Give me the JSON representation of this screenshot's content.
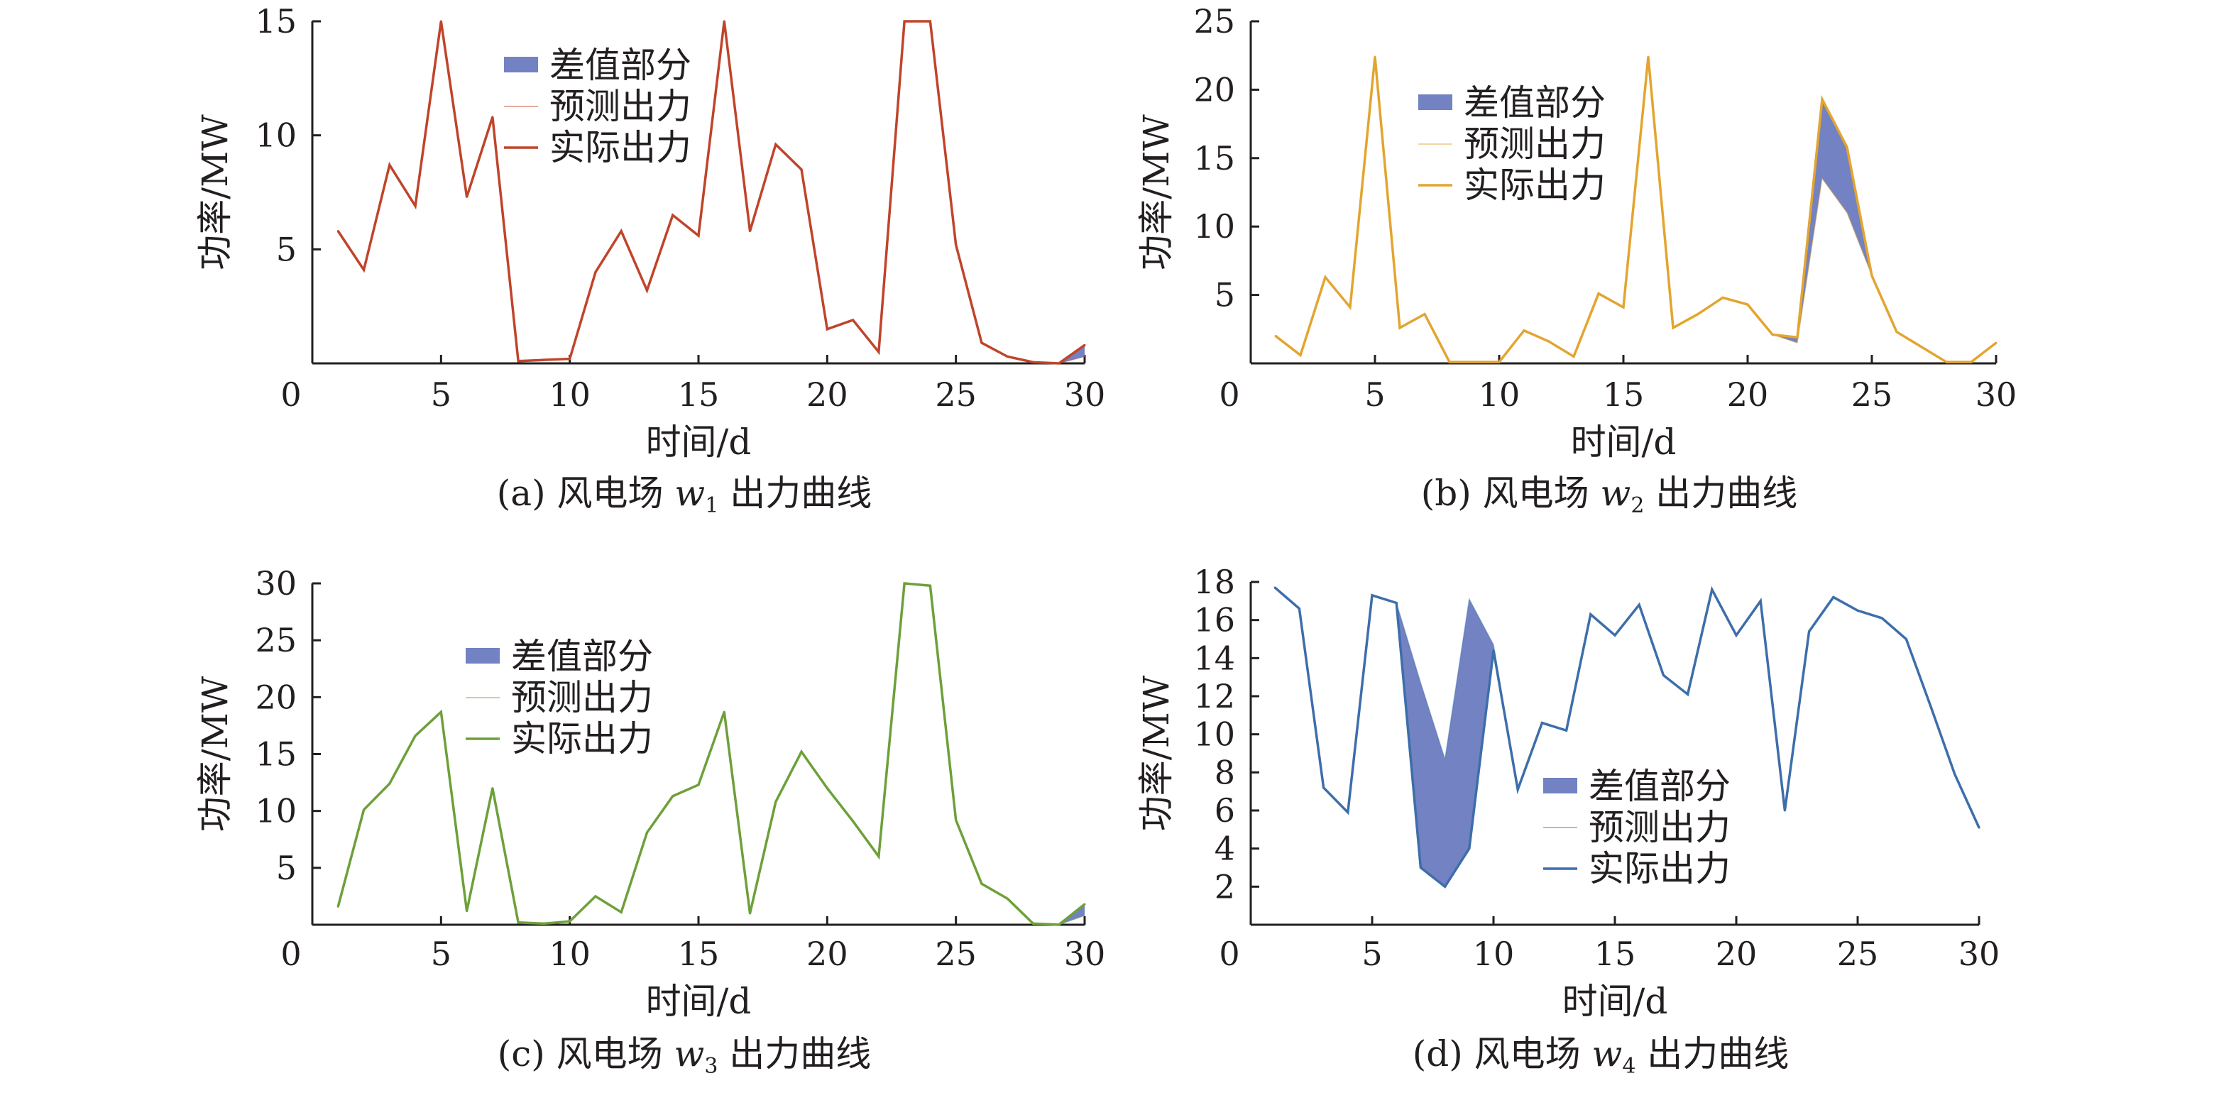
{
  "figure": {
    "colors": {
      "axis": "#231f20",
      "diff_fill": "#7382c2",
      "w1": "#c0442a",
      "w2": "#e3a530",
      "w3": "#6da03a",
      "w4": "#3d6eaa"
    }
  },
  "chart_data": [
    {
      "type": "line",
      "caption_prefix": "(a) 风电场 ",
      "caption_var": "w",
      "caption_sub": "1",
      "caption_suffix": " 出力曲线",
      "xlabel": "时间/d",
      "ylabel": "功率/MW",
      "xlim": [
        0,
        30
      ],
      "ylim": [
        0,
        15
      ],
      "xticks": [
        0,
        5,
        10,
        15,
        20,
        25,
        30
      ],
      "yticks": [
        5,
        10,
        15
      ],
      "legend_position": "top-center",
      "legend": [
        "差值部分",
        "预测出力",
        "实际出力"
      ],
      "line_color": "#c0442a",
      "x": [
        1,
        2,
        3,
        4,
        5,
        6,
        7,
        8,
        9,
        10,
        11,
        12,
        13,
        14,
        15,
        16,
        17,
        18,
        19,
        20,
        21,
        22,
        23,
        24,
        25,
        26,
        27,
        28,
        29,
        30
      ],
      "series": [
        {
          "name": "预测出力",
          "values": [
            5.8,
            4.1,
            8.7,
            6.9,
            15.0,
            7.3,
            10.8,
            0.1,
            0.15,
            0.2,
            4.0,
            5.8,
            3.2,
            6.5,
            5.6,
            15.0,
            5.8,
            9.6,
            8.5,
            1.5,
            1.9,
            0.5,
            15.0,
            15.0,
            5.2,
            0.9,
            0.3,
            0.05,
            0.0,
            0.3
          ]
        },
        {
          "name": "实际出力",
          "values": [
            5.8,
            4.1,
            8.7,
            6.9,
            15.0,
            7.3,
            10.8,
            0.1,
            0.15,
            0.2,
            4.0,
            5.8,
            3.2,
            6.5,
            5.6,
            15.0,
            5.8,
            9.6,
            8.5,
            1.5,
            1.9,
            0.5,
            15.0,
            15.0,
            5.2,
            0.9,
            0.3,
            0.05,
            0.0,
            0.8
          ]
        }
      ]
    },
    {
      "type": "line",
      "caption_prefix": "(b) 风电场 ",
      "caption_var": "w",
      "caption_sub": "2",
      "caption_suffix": " 出力曲线",
      "xlabel": "时间/d",
      "ylabel": "功率/MW",
      "xlim": [
        0,
        30
      ],
      "ylim": [
        0,
        25
      ],
      "xticks": [
        0,
        5,
        10,
        15,
        20,
        25,
        30
      ],
      "yticks": [
        5,
        10,
        15,
        20,
        25
      ],
      "legend_position": "top-center",
      "legend": [
        "差值部分",
        "预测出力",
        "实际出力"
      ],
      "line_color": "#e3a530",
      "x": [
        1,
        2,
        3,
        4,
        5,
        6,
        7,
        8,
        9,
        10,
        11,
        12,
        13,
        14,
        15,
        16,
        17,
        18,
        19,
        20,
        21,
        22,
        23,
        24,
        25,
        26,
        27,
        28,
        29,
        30
      ],
      "series": [
        {
          "name": "预测出力",
          "values": [
            2.0,
            0.6,
            6.3,
            4.1,
            22.4,
            2.6,
            3.6,
            0.1,
            0.1,
            0.1,
            2.4,
            1.6,
            0.5,
            5.1,
            4.1,
            22.4,
            2.6,
            3.6,
            4.8,
            4.3,
            2.1,
            1.5,
            13.5,
            11.0,
            6.4,
            2.3,
            1.2,
            0.1,
            0.1,
            1.5
          ]
        },
        {
          "name": "实际出力",
          "values": [
            2.0,
            0.6,
            6.3,
            4.1,
            22.4,
            2.6,
            3.6,
            0.1,
            0.1,
            0.1,
            2.4,
            1.6,
            0.5,
            5.1,
            4.1,
            22.4,
            2.6,
            3.6,
            4.8,
            4.3,
            2.1,
            1.9,
            19.3,
            15.8,
            6.4,
            2.3,
            1.2,
            0.1,
            0.1,
            1.5
          ]
        }
      ]
    },
    {
      "type": "line",
      "caption_prefix": "(c) 风电场 ",
      "caption_var": "w",
      "caption_sub": "3",
      "caption_suffix": " 出力曲线",
      "xlabel": "时间/d",
      "ylabel": "功率/MW",
      "xlim": [
        0,
        30
      ],
      "ylim": [
        0,
        30
      ],
      "xticks": [
        0,
        5,
        10,
        15,
        20,
        25,
        30
      ],
      "yticks": [
        5,
        10,
        15,
        20,
        25,
        30
      ],
      "legend_position": "top-center",
      "legend": [
        "差值部分",
        "预测出力",
        "实际出力"
      ],
      "line_color": "#6da03a",
      "x": [
        1,
        2,
        3,
        4,
        5,
        6,
        7,
        8,
        9,
        10,
        11,
        12,
        13,
        14,
        15,
        16,
        17,
        18,
        19,
        20,
        21,
        22,
        23,
        24,
        25,
        26,
        27,
        28,
        29,
        30
      ],
      "series": [
        {
          "name": "预测出力",
          "values": [
            1.6,
            10.1,
            12.4,
            16.6,
            18.7,
            1.2,
            12.0,
            0.2,
            0.1,
            0.3,
            2.5,
            1.1,
            8.1,
            11.3,
            12.3,
            18.7,
            1.0,
            10.8,
            15.2,
            12.0,
            9.1,
            6.0,
            30.0,
            29.8,
            9.2,
            3.6,
            2.3,
            0.1,
            0.0,
            0.8
          ]
        },
        {
          "name": "实际出力",
          "values": [
            1.6,
            10.1,
            12.4,
            16.6,
            18.7,
            1.2,
            12.0,
            0.2,
            0.1,
            0.3,
            2.5,
            1.1,
            8.1,
            11.3,
            12.3,
            18.7,
            1.0,
            10.8,
            15.2,
            12.0,
            9.1,
            6.0,
            30.0,
            29.8,
            9.2,
            3.6,
            2.3,
            0.1,
            0.0,
            1.8
          ]
        }
      ]
    },
    {
      "type": "line",
      "caption_prefix": "(d) 风电场 ",
      "caption_var": "w",
      "caption_sub": "4",
      "caption_suffix": " 出力曲线",
      "xlabel": "时间/d",
      "ylabel": "功率/MW",
      "xlim": [
        0,
        30
      ],
      "ylim": [
        0,
        18
      ],
      "xticks": [
        0,
        5,
        10,
        15,
        20,
        25,
        30
      ],
      "yticks": [
        2,
        4,
        6,
        8,
        10,
        12,
        14,
        16,
        18
      ],
      "legend_position": "bottom-center",
      "legend": [
        "差值部分",
        "预测出力",
        "实际出力"
      ],
      "line_color": "#3d6eaa",
      "x": [
        1,
        2,
        3,
        4,
        5,
        6,
        7,
        8,
        9,
        10,
        11,
        12,
        13,
        14,
        15,
        16,
        17,
        18,
        19,
        20,
        21,
        22,
        23,
        24,
        25,
        26,
        27,
        28,
        29,
        30
      ],
      "series": [
        {
          "name": "预测出力",
          "values": [
            17.7,
            16.6,
            7.2,
            5.9,
            17.3,
            16.9,
            12.7,
            8.7,
            17.1,
            14.7,
            7.1,
            10.6,
            10.2,
            16.3,
            15.2,
            16.8,
            13.1,
            12.1,
            17.6,
            15.2,
            17.0,
            6.0,
            15.4,
            17.2,
            16.5,
            16.1,
            15.0,
            11.5,
            7.9,
            5.1
          ]
        },
        {
          "name": "实际出力",
          "values": [
            17.7,
            16.6,
            7.2,
            5.9,
            17.3,
            16.9,
            3.0,
            2.0,
            4.0,
            14.4,
            7.1,
            10.6,
            10.2,
            16.3,
            15.2,
            16.8,
            13.1,
            12.1,
            17.6,
            15.2,
            17.0,
            6.0,
            15.4,
            17.2,
            16.5,
            16.1,
            15.0,
            11.5,
            7.9,
            5.1
          ]
        }
      ]
    }
  ]
}
